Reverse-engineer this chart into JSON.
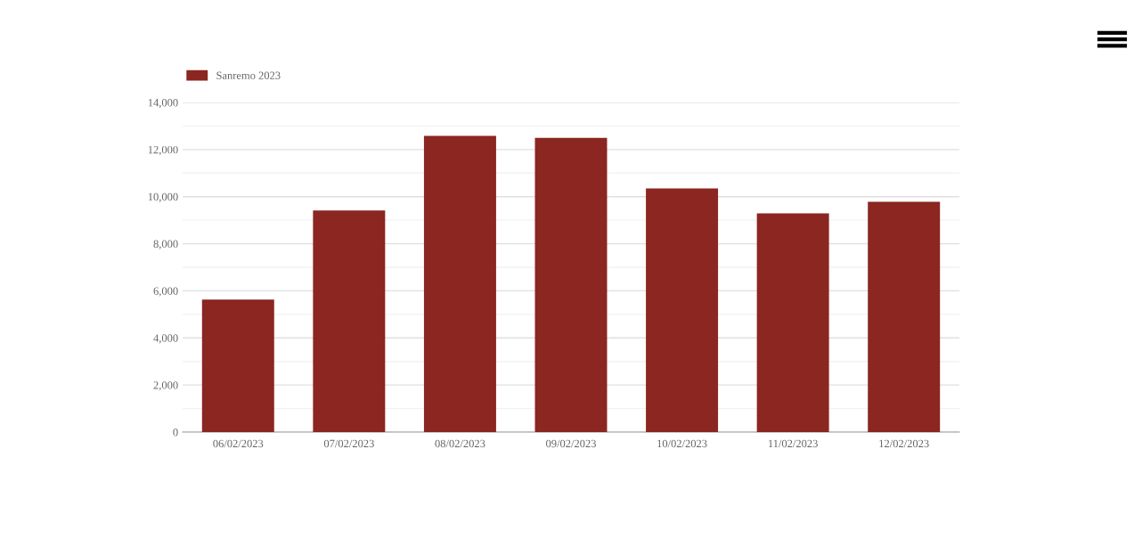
{
  "chart_data": {
    "type": "bar",
    "categories": [
      "06/02/2023",
      "07/02/2023",
      "08/02/2023",
      "09/02/2023",
      "10/02/2023",
      "11/02/2023",
      "12/02/2023"
    ],
    "series": [
      {
        "name": "Sanremo 2023",
        "color": "#8b2620",
        "values": [
          5630,
          9410,
          12580,
          12500,
          10350,
          9290,
          9780
        ]
      }
    ],
    "ylim": [
      0,
      14000
    ],
    "yticks": [
      {
        "value": 0,
        "label": "0"
      },
      {
        "value": 2000,
        "label": "2,000"
      },
      {
        "value": 4000,
        "label": "4,000"
      },
      {
        "value": 6000,
        "label": "6,000"
      },
      {
        "value": 8000,
        "label": "8,000"
      },
      {
        "value": 10000,
        "label": "10,000"
      },
      {
        "value": 12000,
        "label": "12,000"
      },
      {
        "value": 14000,
        "label": "14,000"
      }
    ],
    "grid": "y",
    "legend": "top left"
  }
}
